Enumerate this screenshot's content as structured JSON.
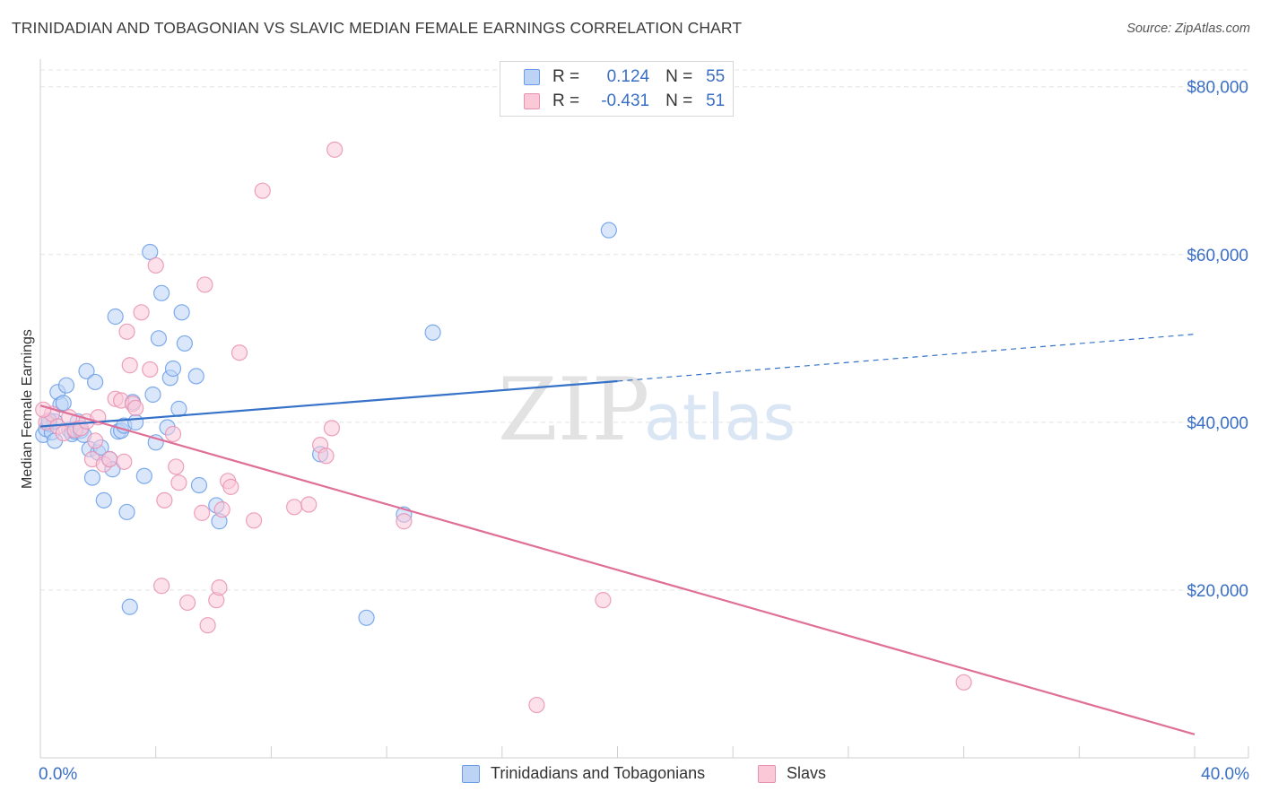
{
  "title": "TRINIDADIAN AND TOBAGONIAN VS SLAVIC MEDIAN FEMALE EARNINGS CORRELATION CHART",
  "source": "Source: ZipAtlas.com",
  "watermark": {
    "zip": "ZIP",
    "atlas": "atlas"
  },
  "legend": {
    "r_label": "R =",
    "n_label": "N =",
    "rows": [
      {
        "r": "0.124",
        "n": "55",
        "color": "#6a9de8",
        "fill": "#bcd3f5"
      },
      {
        "r": "-0.431",
        "n": "51",
        "color": "#e890b0",
        "fill": "#fbc8d8"
      }
    ]
  },
  "bottom_legend": [
    "Trinidadians and Tobagonians",
    "Slavs"
  ],
  "chart_data": {
    "type": "scatter",
    "title": "TRINIDADIAN AND TOBAGONIAN VS SLAVIC MEDIAN FEMALE EARNINGS CORRELATION CHART",
    "xlabel": "",
    "ylabel": "Median Female Earnings",
    "xlim": [
      0,
      40
    ],
    "ylim": [
      0,
      82000
    ],
    "x_tick_labels": [
      "0.0%",
      "40.0%"
    ],
    "y_ticks": [
      20000,
      40000,
      60000,
      80000
    ],
    "y_tick_labels": [
      "$20,000",
      "$40,000",
      "$60,000",
      "$80,000"
    ],
    "grid": true,
    "series": [
      {
        "name": "Trinidadians and Tobagonians",
        "color": "#6a9de8",
        "fill": "#bcd3f5",
        "line_color": "#3572c8",
        "trend": {
          "x0": 0,
          "y0": 39500,
          "x1": 20,
          "y1": 44900,
          "dash_to_x": 40,
          "dash_to_y": 50500
        },
        "points": [
          [
            0.1,
            38500
          ],
          [
            0.2,
            39200
          ],
          [
            0.3,
            39800
          ],
          [
            0.4,
            38800
          ],
          [
            0.5,
            40100
          ],
          [
            0.5,
            37800
          ],
          [
            0.6,
            43600
          ],
          [
            0.7,
            42100
          ],
          [
            0.8,
            42300
          ],
          [
            0.9,
            44400
          ],
          [
            1.0,
            39100
          ],
          [
            1.1,
            38600
          ],
          [
            1.2,
            38900
          ],
          [
            1.3,
            40100
          ],
          [
            1.4,
            39000
          ],
          [
            1.5,
            38500
          ],
          [
            1.6,
            46100
          ],
          [
            1.7,
            36800
          ],
          [
            1.8,
            33400
          ],
          [
            1.9,
            44800
          ],
          [
            2.0,
            36400
          ],
          [
            2.1,
            37000
          ],
          [
            2.2,
            30700
          ],
          [
            2.4,
            35600
          ],
          [
            2.5,
            34400
          ],
          [
            2.6,
            52600
          ],
          [
            2.7,
            38900
          ],
          [
            2.8,
            39000
          ],
          [
            2.9,
            39600
          ],
          [
            3.0,
            29300
          ],
          [
            3.1,
            18000
          ],
          [
            3.2,
            42400
          ],
          [
            3.3,
            40000
          ],
          [
            3.6,
            33600
          ],
          [
            3.8,
            60300
          ],
          [
            3.9,
            43300
          ],
          [
            4.0,
            37600
          ],
          [
            4.1,
            50000
          ],
          [
            4.2,
            55400
          ],
          [
            4.4,
            39400
          ],
          [
            4.5,
            45300
          ],
          [
            4.6,
            46400
          ],
          [
            4.8,
            41600
          ],
          [
            4.9,
            53100
          ],
          [
            5.0,
            49400
          ],
          [
            5.4,
            45500
          ],
          [
            5.5,
            32500
          ],
          [
            6.1,
            30100
          ],
          [
            6.2,
            28200
          ],
          [
            9.7,
            36200
          ],
          [
            11.3,
            16700
          ],
          [
            12.6,
            29000
          ],
          [
            13.6,
            50700
          ],
          [
            19.7,
            62900
          ],
          [
            0.3,
            40200
          ]
        ]
      },
      {
        "name": "Slavs",
        "color": "#e890b0",
        "fill": "#fbc8d8",
        "line_color": "#e06f97",
        "trend": {
          "x0": 0,
          "y0": 42000,
          "x1": 40,
          "y1": 2800
        },
        "points": [
          [
            0.2,
            40000
          ],
          [
            0.4,
            41000
          ],
          [
            0.6,
            39500
          ],
          [
            0.8,
            38700
          ],
          [
            1.0,
            40600
          ],
          [
            1.2,
            39100
          ],
          [
            1.4,
            39300
          ],
          [
            1.6,
            40100
          ],
          [
            1.8,
            35600
          ],
          [
            2.0,
            40600
          ],
          [
            2.2,
            35000
          ],
          [
            2.4,
            35600
          ],
          [
            2.6,
            42800
          ],
          [
            2.8,
            42600
          ],
          [
            3.0,
            50800
          ],
          [
            3.1,
            46800
          ],
          [
            3.2,
            42200
          ],
          [
            3.3,
            41700
          ],
          [
            3.5,
            53100
          ],
          [
            3.8,
            46300
          ],
          [
            4.0,
            58700
          ],
          [
            4.3,
            30700
          ],
          [
            4.6,
            38600
          ],
          [
            4.7,
            34700
          ],
          [
            4.8,
            32800
          ],
          [
            5.1,
            18500
          ],
          [
            5.6,
            29200
          ],
          [
            5.7,
            56400
          ],
          [
            5.8,
            15800
          ],
          [
            6.1,
            18800
          ],
          [
            6.2,
            20300
          ],
          [
            6.3,
            29600
          ],
          [
            6.5,
            33000
          ],
          [
            6.6,
            32300
          ],
          [
            6.9,
            48300
          ],
          [
            7.4,
            28300
          ],
          [
            7.7,
            67600
          ],
          [
            4.2,
            20500
          ],
          [
            8.8,
            29900
          ],
          [
            9.3,
            30200
          ],
          [
            9.7,
            37300
          ],
          [
            9.9,
            36000
          ],
          [
            10.1,
            39300
          ],
          [
            10.2,
            72500
          ],
          [
            12.6,
            28200
          ],
          [
            17.2,
            6300
          ],
          [
            19.5,
            18800
          ],
          [
            32.0,
            9000
          ],
          [
            1.9,
            37800
          ],
          [
            2.9,
            35300
          ],
          [
            0.1,
            41500
          ]
        ]
      }
    ]
  }
}
